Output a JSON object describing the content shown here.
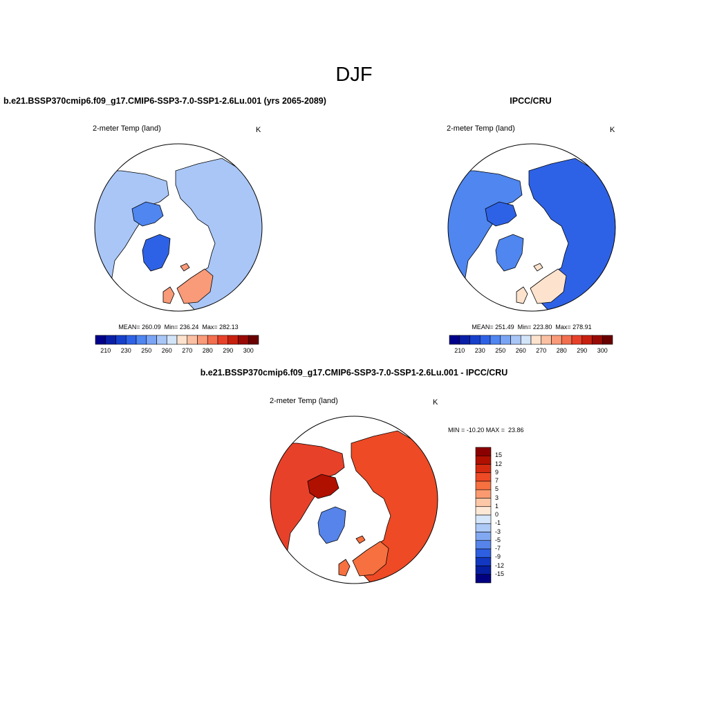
{
  "page": {
    "title": "DJF",
    "case_title": "b.e21.BSSP370cmip6.f09_g17.CMIP6-SSP3-7.0-SSP1-2.6Lu.001 (yrs 2065-2089)",
    "obs_title": "IPCC/CRU",
    "diff_title": "b.e21.BSSP370cmip6.f09_g17.CMIP6-SSP3-7.0-SSP1-2.6Lu.001 - IPCC/CRU"
  },
  "panels": [
    {
      "variable": "2-meter Temp (land)",
      "units": "K",
      "stats": "MEAN= 260.09  Min= 236.24  Max= 282.13"
    },
    {
      "variable": "2-meter Temp (land)",
      "units": "K",
      "stats": "MEAN= 251.49  Min= 223.80  Max= 278.91"
    },
    {
      "variable": "2-meter Temp (land)",
      "units": "K",
      "stats": "MIN = -10.20 MAX =  23.86"
    }
  ],
  "colorbar_abs": {
    "labels": [
      "210",
      "230",
      "250",
      "260",
      "270",
      "280",
      "290",
      "300"
    ],
    "colors": [
      "#00008b",
      "#0a1fa8",
      "#1640cc",
      "#2e62e6",
      "#4f86f0",
      "#7aa5f5",
      "#a9c6f7",
      "#d2e4f8",
      "#fde3cd",
      "#fbc0a3",
      "#f99a78",
      "#f36f4f",
      "#e8412a",
      "#c8200f",
      "#9a0a05",
      "#6a0000"
    ]
  },
  "colorbar_diff": {
    "labels": [
      "15",
      "12",
      "9",
      "7",
      "5",
      "3",
      "1",
      "0",
      "-1",
      "-3",
      "-5",
      "-7",
      "-9",
      "-12",
      "-15"
    ],
    "colors": [
      "#8b0000",
      "#b01000",
      "#d42a10",
      "#ee4a25",
      "#f7703f",
      "#fb9a70",
      "#fcc7a6",
      "#fde8d6",
      "#d6e6fa",
      "#adc9f6",
      "#82a8f1",
      "#5684ea",
      "#2d5fe0",
      "#1238c2",
      "#061ea0",
      "#000080"
    ]
  }
}
